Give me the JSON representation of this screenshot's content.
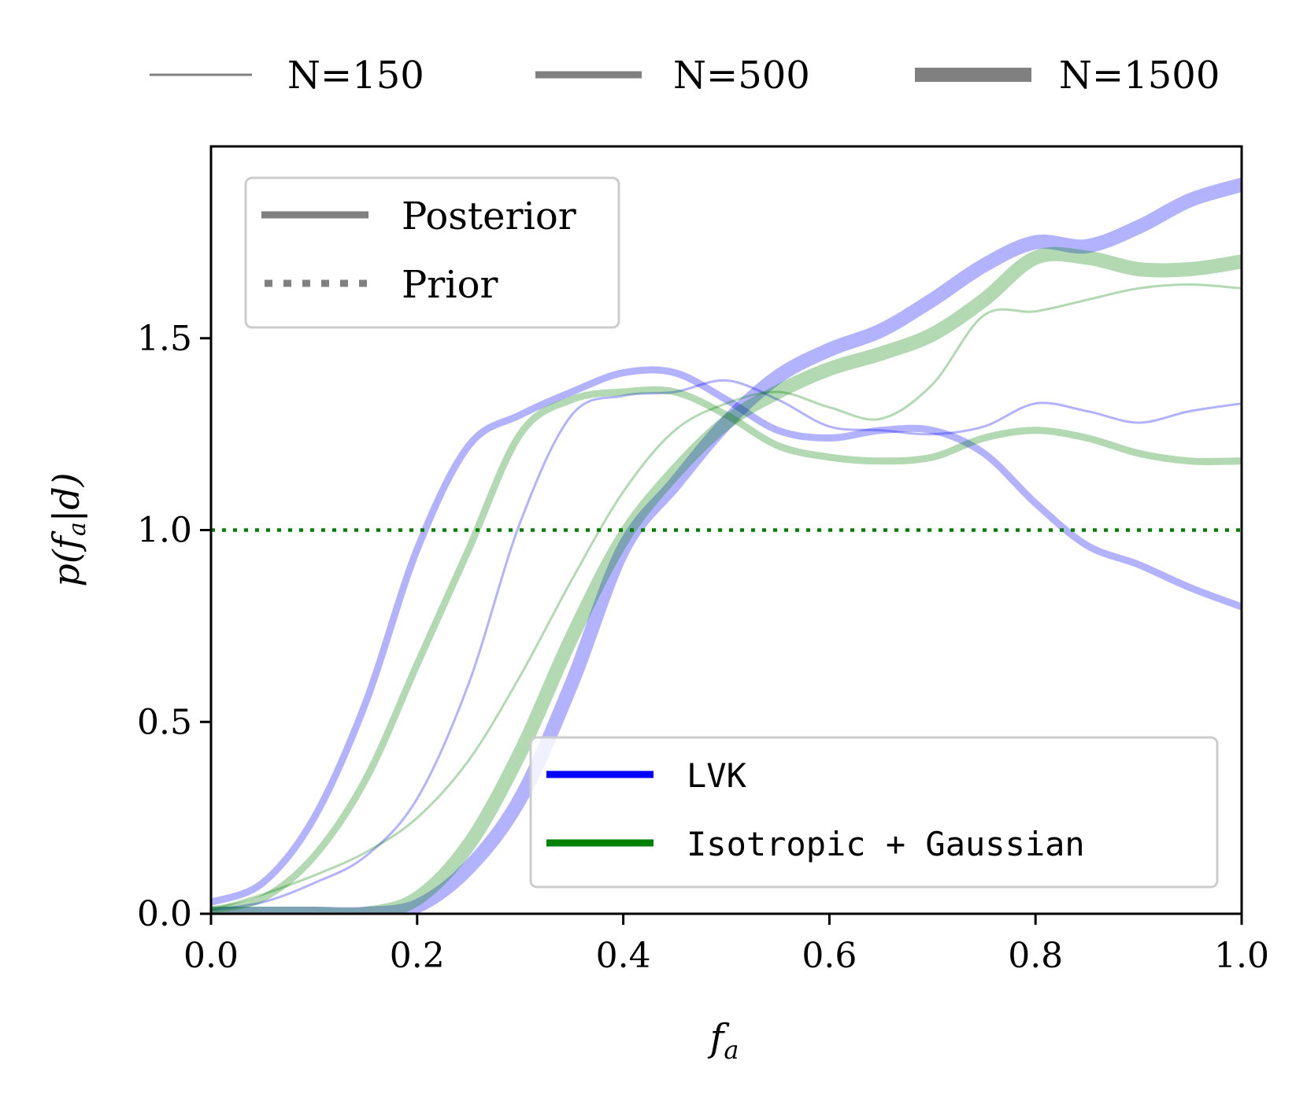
{
  "chart_data": {
    "type": "line",
    "xlabel": "f_a",
    "ylabel": "p(f_a|d)",
    "xlim": [
      0.0,
      1.0
    ],
    "ylim": [
      0.0,
      2.0
    ],
    "x_ticks": [
      "0.0",
      "0.2",
      "0.4",
      "0.6",
      "0.8",
      "1.0"
    ],
    "y_ticks": [
      "0.0",
      "0.5",
      "1.0",
      "1.5"
    ],
    "grid": false,
    "colors": {
      "LVK": "#0000ff",
      "Isotropic + Gaussian": "#008000",
      "legend_gray": "#808080"
    },
    "top_legend": {
      "placement": "top-outside",
      "items": [
        "N=150",
        "N=500",
        "N=1500"
      ]
    },
    "style_legend": {
      "placement": "top-left",
      "items": [
        "Posterior",
        "Prior"
      ]
    },
    "model_legend": {
      "placement": "bottom-right",
      "items": [
        "LVK",
        "Isotropic + Gaussian"
      ]
    },
    "prior": {
      "name": "Prior",
      "y": 1.0,
      "color": "#008000"
    },
    "series": [
      {
        "model": "LVK",
        "N": "N=150",
        "x": [
          0,
          0.05,
          0.1,
          0.15,
          0.2,
          0.25,
          0.3,
          0.35,
          0.4,
          0.45,
          0.5,
          0.55,
          0.6,
          0.65,
          0.7,
          0.75,
          0.8,
          0.85,
          0.9,
          0.95,
          1.0
        ],
        "y": [
          0.01,
          0.03,
          0.08,
          0.15,
          0.3,
          0.6,
          1.02,
          1.3,
          1.35,
          1.36,
          1.39,
          1.34,
          1.27,
          1.26,
          1.25,
          1.27,
          1.33,
          1.31,
          1.28,
          1.31,
          1.33
        ]
      },
      {
        "model": "LVK",
        "N": "N=500",
        "x": [
          0,
          0.05,
          0.1,
          0.15,
          0.2,
          0.25,
          0.3,
          0.35,
          0.4,
          0.45,
          0.5,
          0.55,
          0.6,
          0.65,
          0.7,
          0.75,
          0.8,
          0.85,
          0.9,
          0.95,
          1.0
        ],
        "y": [
          0.03,
          0.08,
          0.25,
          0.55,
          0.95,
          1.22,
          1.3,
          1.36,
          1.41,
          1.41,
          1.34,
          1.26,
          1.24,
          1.26,
          1.26,
          1.2,
          1.07,
          0.96,
          0.91,
          0.85,
          0.8
        ]
      },
      {
        "model": "LVK",
        "N": "N=1500",
        "x": [
          0,
          0.05,
          0.1,
          0.15,
          0.2,
          0.25,
          0.3,
          0.35,
          0.4,
          0.45,
          0.5,
          0.55,
          0.6,
          0.65,
          0.7,
          0.75,
          0.8,
          0.85,
          0.9,
          0.95,
          1.0
        ],
        "y": [
          0.0,
          0.0,
          0.0,
          0.0,
          0.02,
          0.12,
          0.3,
          0.6,
          0.95,
          1.12,
          1.28,
          1.4,
          1.47,
          1.52,
          1.6,
          1.69,
          1.75,
          1.74,
          1.79,
          1.86,
          1.9
        ]
      },
      {
        "model": "Isotropic + Gaussian",
        "N": "N=150",
        "x": [
          0,
          0.05,
          0.1,
          0.15,
          0.2,
          0.25,
          0.3,
          0.35,
          0.4,
          0.45,
          0.5,
          0.55,
          0.6,
          0.65,
          0.7,
          0.75,
          0.8,
          0.85,
          0.9,
          0.95,
          1.0
        ],
        "y": [
          0.01,
          0.05,
          0.1,
          0.16,
          0.25,
          0.4,
          0.62,
          0.87,
          1.1,
          1.26,
          1.33,
          1.36,
          1.32,
          1.29,
          1.38,
          1.56,
          1.57,
          1.6,
          1.63,
          1.64,
          1.63
        ]
      },
      {
        "model": "Isotropic + Gaussian",
        "N": "N=500",
        "x": [
          0,
          0.05,
          0.1,
          0.15,
          0.2,
          0.25,
          0.3,
          0.35,
          0.4,
          0.45,
          0.5,
          0.55,
          0.6,
          0.65,
          0.7,
          0.75,
          0.8,
          0.85,
          0.9,
          0.95,
          1.0
        ],
        "y": [
          0.01,
          0.04,
          0.15,
          0.35,
          0.65,
          0.95,
          1.25,
          1.34,
          1.36,
          1.36,
          1.3,
          1.22,
          1.19,
          1.18,
          1.19,
          1.24,
          1.26,
          1.24,
          1.2,
          1.18,
          1.18
        ]
      },
      {
        "model": "Isotropic + Gaussian",
        "N": "N=1500",
        "x": [
          0,
          0.05,
          0.1,
          0.15,
          0.2,
          0.25,
          0.3,
          0.35,
          0.4,
          0.45,
          0.5,
          0.55,
          0.6,
          0.65,
          0.7,
          0.75,
          0.8,
          0.85,
          0.9,
          0.95,
          1.0
        ],
        "y": [
          0.0,
          0.0,
          0.0,
          0.0,
          0.04,
          0.18,
          0.42,
          0.72,
          0.98,
          1.15,
          1.28,
          1.36,
          1.42,
          1.46,
          1.51,
          1.6,
          1.71,
          1.71,
          1.68,
          1.68,
          1.7
        ]
      }
    ]
  }
}
